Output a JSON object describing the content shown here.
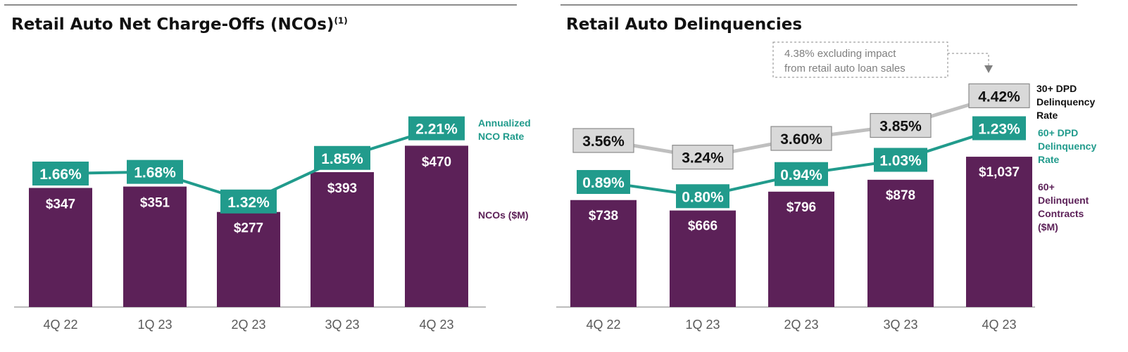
{
  "colors": {
    "bar": "#5c2158",
    "teal": "#219b8c",
    "gray_box": "#d9d9d9",
    "gray_line": "#bfbfbf",
    "axis": "#a6a6a6"
  },
  "left": {
    "title": "Retail Auto Net Charge-Offs (NCOs)",
    "title_sup": "(1)",
    "legend_rate": [
      "Annualized",
      "NCO Rate"
    ],
    "legend_bars": "NCOs ($M)"
  },
  "right": {
    "title": "Retail Auto Delinquencies",
    "note": [
      "4.38% excluding impact",
      "from retail auto loan sales"
    ],
    "legend_30": [
      "30+ DPD",
      "Delinquency",
      "Rate"
    ],
    "legend_60": [
      "60+ DPD",
      "Delinquency",
      "Rate"
    ],
    "legend_bars": [
      "60+",
      "Delinquent",
      "Contracts",
      "($M)"
    ]
  },
  "chart_data": [
    {
      "type": "bar",
      "title": "Retail Auto Net Charge-Offs (NCOs)",
      "categories": [
        "4Q 22",
        "1Q 23",
        "2Q 23",
        "3Q 23",
        "4Q 23"
      ],
      "series": [
        {
          "name": "NCOs ($M)",
          "type": "bar",
          "values": [
            347,
            351,
            277,
            393,
            470
          ],
          "labels": [
            "$347",
            "$351",
            "$277",
            "$393",
            "$470"
          ]
        },
        {
          "name": "Annualized NCO Rate",
          "type": "line",
          "values": [
            1.66,
            1.68,
            1.32,
            1.85,
            2.21
          ],
          "labels": [
            "1.66%",
            "1.68%",
            "1.32%",
            "1.85%",
            "2.21%"
          ]
        }
      ]
    },
    {
      "type": "bar",
      "title": "Retail Auto Delinquencies",
      "categories": [
        "4Q 22",
        "1Q 23",
        "2Q 23",
        "3Q 23",
        "4Q 23"
      ],
      "series": [
        {
          "name": "60+ Delinquent Contracts ($M)",
          "type": "bar",
          "values": [
            738,
            666,
            796,
            878,
            1037
          ],
          "labels": [
            "$738",
            "$666",
            "$796",
            "$878",
            "$1,037"
          ]
        },
        {
          "name": "60+ DPD Delinquency Rate",
          "type": "line",
          "values": [
            0.89,
            0.8,
            0.94,
            1.03,
            1.23
          ],
          "labels": [
            "0.89%",
            "0.80%",
            "0.94%",
            "1.03%",
            "1.23%"
          ]
        },
        {
          "name": "30+ DPD Delinquency Rate",
          "type": "line",
          "values": [
            3.56,
            3.24,
            3.6,
            3.85,
            4.42
          ],
          "labels": [
            "3.56%",
            "3.24%",
            "3.60%",
            "3.85%",
            "4.42%"
          ]
        }
      ],
      "annotation": "4.38% excluding impact from retail auto loan sales"
    }
  ]
}
